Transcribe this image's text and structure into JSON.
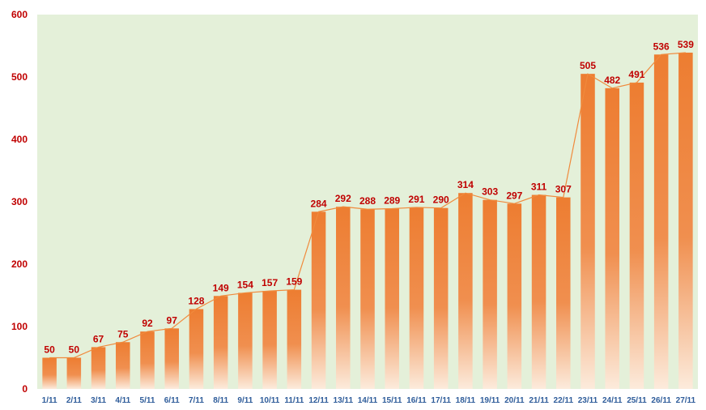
{
  "chart_data": {
    "type": "bar",
    "categories": [
      "1/11",
      "2/11",
      "3/11",
      "4/11",
      "5/11",
      "6/11",
      "7/11",
      "8/11",
      "9/11",
      "10/11",
      "11/11",
      "12/11",
      "13/11",
      "14/11",
      "15/11",
      "16/11",
      "17/11",
      "18/11",
      "19/11",
      "20/11",
      "21/11",
      "22/11",
      "23/11",
      "24/11",
      "25/11",
      "26/11",
      "27/11"
    ],
    "values": [
      50,
      50,
      67,
      75,
      92,
      97,
      128,
      149,
      154,
      157,
      159,
      284,
      292,
      288,
      289,
      291,
      290,
      314,
      303,
      297,
      311,
      307,
      505,
      482,
      491,
      536,
      539
    ],
    "data_labels": [
      "50",
      "50",
      "67",
      "75",
      "92",
      "97",
      "128",
      "149",
      "154",
      "157",
      "159",
      "284",
      "292",
      "288",
      "289",
      "291",
      "290",
      "314",
      "303",
      "297",
      "311",
      "307",
      "505",
      "482",
      "491",
      "536",
      "539"
    ],
    "y_ticks": [
      "0",
      "100",
      "200",
      "300",
      "400",
      "500",
      "600"
    ],
    "ylim": [
      0,
      600
    ],
    "title": "",
    "xlabel": "",
    "ylabel": "",
    "has_trend_line": true,
    "grid": false,
    "legend": "none"
  },
  "colors": {
    "plot_background": "#e4f0d9",
    "bar_top": "#ed7d31",
    "bar_bottom": "#fde9d9",
    "trend_line": "#f08a3c",
    "data_label": "#c00000",
    "y_tick_label": "#c00000",
    "x_tick_label": "#2e5c9a"
  }
}
